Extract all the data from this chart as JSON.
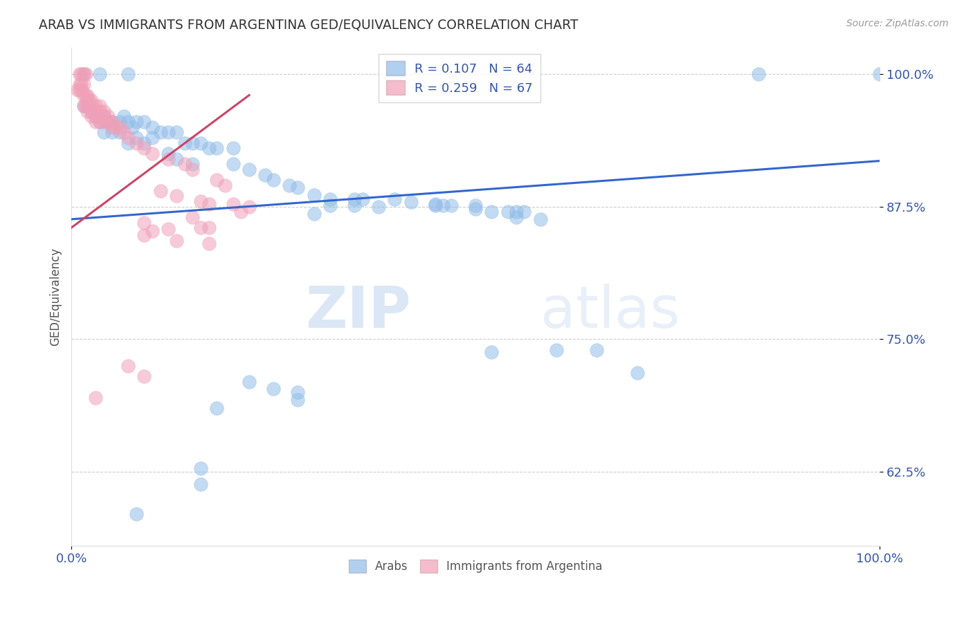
{
  "title": "ARAB VS IMMIGRANTS FROM ARGENTINA GED/EQUIVALENCY CORRELATION CHART",
  "source": "Source: ZipAtlas.com",
  "ylabel": "GED/Equivalency",
  "xlim": [
    0.0,
    1.0
  ],
  "ylim": [
    0.555,
    1.025
  ],
  "yticks": [
    0.625,
    0.75,
    0.875,
    1.0
  ],
  "ytick_labels": [
    "62.5%",
    "75.0%",
    "87.5%",
    "100.0%"
  ],
  "xticks": [
    0.0,
    1.0
  ],
  "xtick_labels": [
    "0.0%",
    "100.0%"
  ],
  "watermark_zip": "ZIP",
  "watermark_atlas": "atlas",
  "blue_color": "#90bce8",
  "pink_color": "#f0a0b8",
  "blue_line_color": "#3366cc",
  "pink_line_color": "#cc4466",
  "title_color": "#333333",
  "axis_label_color": "#555555",
  "tick_label_color": "#3355aa",
  "grid_color": "#cccccc",
  "background_color": "#ffffff",
  "blue_trend_x": [
    0.0,
    1.0
  ],
  "blue_trend_y": [
    0.863,
    0.918
  ],
  "pink_trend_x": [
    0.0,
    0.22
  ],
  "pink_trend_y": [
    0.855,
    0.98
  ],
  "arab_points": [
    [
      0.015,
      1.0
    ],
    [
      0.035,
      1.0
    ],
    [
      0.07,
      1.0
    ],
    [
      0.015,
      0.97
    ],
    [
      0.025,
      0.965
    ],
    [
      0.03,
      0.96
    ],
    [
      0.035,
      0.955
    ],
    [
      0.04,
      0.96
    ],
    [
      0.045,
      0.955
    ],
    [
      0.05,
      0.955
    ],
    [
      0.06,
      0.955
    ],
    [
      0.065,
      0.96
    ],
    [
      0.07,
      0.955
    ],
    [
      0.075,
      0.95
    ],
    [
      0.08,
      0.955
    ],
    [
      0.09,
      0.955
    ],
    [
      0.1,
      0.95
    ],
    [
      0.1,
      0.94
    ],
    [
      0.11,
      0.945
    ],
    [
      0.12,
      0.945
    ],
    [
      0.13,
      0.945
    ],
    [
      0.04,
      0.945
    ],
    [
      0.05,
      0.945
    ],
    [
      0.06,
      0.945
    ],
    [
      0.07,
      0.935
    ],
    [
      0.08,
      0.94
    ],
    [
      0.09,
      0.935
    ],
    [
      0.14,
      0.935
    ],
    [
      0.15,
      0.935
    ],
    [
      0.16,
      0.935
    ],
    [
      0.17,
      0.93
    ],
    [
      0.18,
      0.93
    ],
    [
      0.2,
      0.93
    ],
    [
      0.12,
      0.925
    ],
    [
      0.13,
      0.92
    ],
    [
      0.15,
      0.915
    ],
    [
      0.2,
      0.915
    ],
    [
      0.22,
      0.91
    ],
    [
      0.24,
      0.905
    ],
    [
      0.25,
      0.9
    ],
    [
      0.27,
      0.895
    ],
    [
      0.28,
      0.893
    ],
    [
      0.3,
      0.886
    ],
    [
      0.32,
      0.882
    ],
    [
      0.35,
      0.882
    ],
    [
      0.36,
      0.882
    ],
    [
      0.4,
      0.882
    ],
    [
      0.42,
      0.879
    ],
    [
      0.45,
      0.877
    ],
    [
      0.46,
      0.876
    ],
    [
      0.47,
      0.876
    ],
    [
      0.5,
      0.876
    ],
    [
      0.32,
      0.876
    ],
    [
      0.35,
      0.876
    ],
    [
      0.45,
      0.876
    ],
    [
      0.5,
      0.873
    ],
    [
      0.55,
      0.87
    ],
    [
      0.56,
      0.87
    ],
    [
      0.52,
      0.87
    ],
    [
      0.54,
      0.87
    ],
    [
      0.38,
      0.875
    ],
    [
      0.55,
      0.865
    ],
    [
      0.3,
      0.868
    ],
    [
      0.58,
      0.863
    ],
    [
      0.6,
      0.74
    ],
    [
      0.65,
      0.74
    ],
    [
      0.52,
      0.738
    ],
    [
      0.7,
      0.718
    ],
    [
      0.22,
      0.71
    ],
    [
      0.25,
      0.703
    ],
    [
      0.28,
      0.7
    ],
    [
      0.28,
      0.693
    ],
    [
      0.18,
      0.685
    ],
    [
      0.16,
      0.628
    ],
    [
      0.16,
      0.613
    ],
    [
      0.08,
      0.585
    ],
    [
      0.85,
      1.0
    ],
    [
      1.0,
      1.0
    ]
  ],
  "argentina_points": [
    [
      0.01,
      1.0
    ],
    [
      0.012,
      1.0
    ],
    [
      0.015,
      1.0
    ],
    [
      0.018,
      1.0
    ],
    [
      0.01,
      0.99
    ],
    [
      0.012,
      0.99
    ],
    [
      0.015,
      0.99
    ],
    [
      0.008,
      0.985
    ],
    [
      0.01,
      0.985
    ],
    [
      0.013,
      0.985
    ],
    [
      0.015,
      0.98
    ],
    [
      0.018,
      0.98
    ],
    [
      0.02,
      0.98
    ],
    [
      0.02,
      0.975
    ],
    [
      0.022,
      0.975
    ],
    [
      0.025,
      0.975
    ],
    [
      0.015,
      0.97
    ],
    [
      0.018,
      0.97
    ],
    [
      0.02,
      0.97
    ],
    [
      0.025,
      0.97
    ],
    [
      0.03,
      0.97
    ],
    [
      0.035,
      0.97
    ],
    [
      0.02,
      0.965
    ],
    [
      0.025,
      0.965
    ],
    [
      0.03,
      0.965
    ],
    [
      0.035,
      0.965
    ],
    [
      0.04,
      0.965
    ],
    [
      0.025,
      0.96
    ],
    [
      0.03,
      0.96
    ],
    [
      0.035,
      0.96
    ],
    [
      0.04,
      0.96
    ],
    [
      0.045,
      0.96
    ],
    [
      0.03,
      0.955
    ],
    [
      0.035,
      0.955
    ],
    [
      0.04,
      0.955
    ],
    [
      0.045,
      0.955
    ],
    [
      0.05,
      0.955
    ],
    [
      0.05,
      0.95
    ],
    [
      0.055,
      0.95
    ],
    [
      0.06,
      0.95
    ],
    [
      0.065,
      0.945
    ],
    [
      0.07,
      0.94
    ],
    [
      0.08,
      0.935
    ],
    [
      0.09,
      0.93
    ],
    [
      0.1,
      0.925
    ],
    [
      0.12,
      0.92
    ],
    [
      0.14,
      0.915
    ],
    [
      0.15,
      0.91
    ],
    [
      0.18,
      0.9
    ],
    [
      0.19,
      0.895
    ],
    [
      0.11,
      0.89
    ],
    [
      0.13,
      0.885
    ],
    [
      0.16,
      0.88
    ],
    [
      0.17,
      0.877
    ],
    [
      0.2,
      0.877
    ],
    [
      0.22,
      0.875
    ],
    [
      0.21,
      0.87
    ],
    [
      0.15,
      0.865
    ],
    [
      0.09,
      0.86
    ],
    [
      0.16,
      0.855
    ],
    [
      0.17,
      0.855
    ],
    [
      0.12,
      0.854
    ],
    [
      0.1,
      0.852
    ],
    [
      0.09,
      0.848
    ],
    [
      0.13,
      0.843
    ],
    [
      0.17,
      0.84
    ],
    [
      0.07,
      0.725
    ],
    [
      0.09,
      0.715
    ],
    [
      0.03,
      0.695
    ]
  ]
}
